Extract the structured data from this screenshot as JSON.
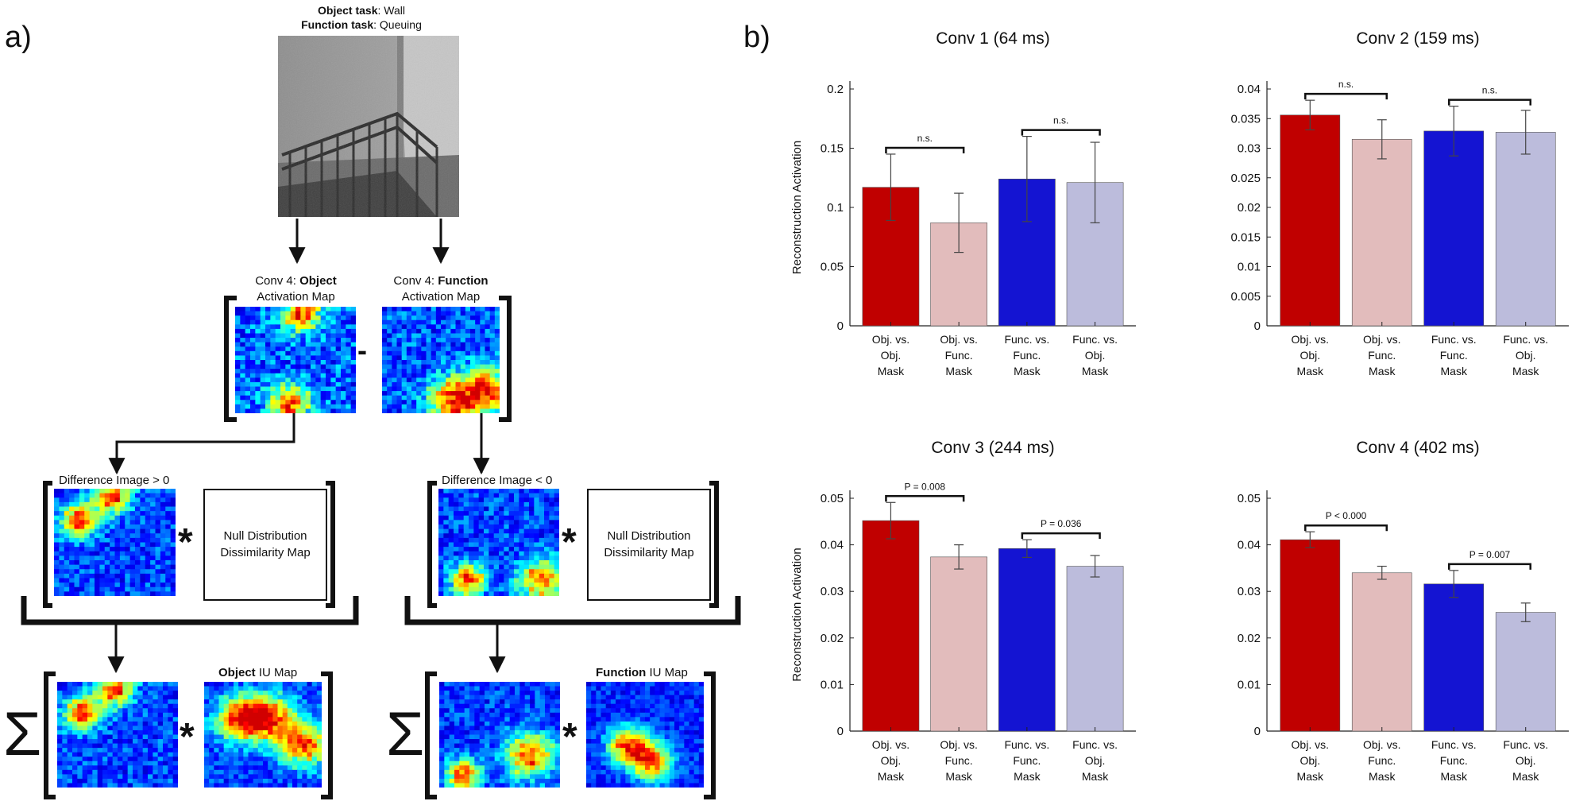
{
  "panel_a": {
    "label": "a)",
    "task_object_key": "Object task",
    "task_object_value": ": Wall",
    "task_function_key": "Function task",
    "task_function_value": ": Queuing",
    "obj_map_prefix": "Conv 4: ",
    "obj_map_bold": "Object",
    "obj_map_line2": "Activation Map",
    "func_map_prefix": "Conv 4: ",
    "func_map_bold": "Function",
    "func_map_line2": "Activation Map",
    "minus": "-",
    "diff_pos": "Difference Image > 0",
    "diff_neg": "Difference Image < 0",
    "null_line1": "Null Distribution",
    "null_line2": "Dissimilarity Map",
    "star": "*",
    "sigma": "Σ",
    "obj_iu_bold": "Object",
    "obj_iu_rest": " IU Map",
    "func_iu_bold": "Function",
    "func_iu_rest": " IU Map"
  },
  "panel_b": {
    "label": "b)"
  },
  "colors": {
    "obj_obj": "#c00000",
    "obj_func": "#e2bcbc",
    "func_func": "#1414d2",
    "func_obj": "#bcbcdc"
  },
  "chart_data": [
    {
      "type": "bar",
      "title": "Conv 1 (64 ms)",
      "ylabel": "Reconstruction Activation",
      "categories": [
        [
          "Obj. vs.",
          "Obj.",
          "Mask"
        ],
        [
          "Obj. vs.",
          "Func.",
          "Mask"
        ],
        [
          "Func. vs.",
          "Func.",
          "Mask"
        ],
        [
          "Func. vs.",
          "Obj.",
          "Mask"
        ]
      ],
      "values": [
        0.117,
        0.087,
        0.124,
        0.121
      ],
      "errors": [
        0.028,
        0.025,
        0.036,
        0.034
      ],
      "ylim": [
        0,
        0.2
      ],
      "yticks": [
        "0",
        "0.05",
        "0.1",
        "0.15",
        "0.2"
      ],
      "ytick_values": [
        0,
        0.05,
        0.1,
        0.15,
        0.2
      ],
      "annotations": [
        {
          "from": 0,
          "to": 1,
          "text": "n.s."
        },
        {
          "from": 2,
          "to": 3,
          "text": "n.s."
        }
      ]
    },
    {
      "type": "bar",
      "title": "Conv 2 (159 ms)",
      "ylabel": "",
      "categories": [
        [
          "Obj. vs.",
          "Obj.",
          "Mask"
        ],
        [
          "Obj. vs.",
          "Func.",
          "Mask"
        ],
        [
          "Func. vs.",
          "Func.",
          "Mask"
        ],
        [
          "Func. vs.",
          "Obj.",
          "Mask"
        ]
      ],
      "values": [
        0.0356,
        0.0315,
        0.0329,
        0.0327
      ],
      "errors": [
        0.0025,
        0.0033,
        0.0042,
        0.0037
      ],
      "ylim": [
        0,
        0.04
      ],
      "yticks": [
        "0",
        "0.005",
        "0.01",
        "0.015",
        "0.02",
        "0.025",
        "0.03",
        "0.035",
        "0.04"
      ],
      "ytick_values": [
        0,
        0.005,
        0.01,
        0.015,
        0.02,
        0.025,
        0.03,
        0.035,
        0.04
      ],
      "annotations": [
        {
          "from": 0,
          "to": 1,
          "text": "n.s."
        },
        {
          "from": 2,
          "to": 3,
          "text": "n.s."
        }
      ]
    },
    {
      "type": "bar",
      "title": "Conv 3 (244 ms)",
      "ylabel": "Reconstruction Activation",
      "categories": [
        [
          "Obj. vs.",
          "Obj.",
          "Mask"
        ],
        [
          "Obj. vs.",
          "Func.",
          "Mask"
        ],
        [
          "Func. vs.",
          "Func.",
          "Mask"
        ],
        [
          "Func. vs.",
          "Obj.",
          "Mask"
        ]
      ],
      "values": [
        0.0452,
        0.0374,
        0.0392,
        0.0354
      ],
      "errors": [
        0.0039,
        0.0026,
        0.0019,
        0.0023
      ],
      "ylim": [
        0,
        0.05
      ],
      "yticks": [
        "0",
        "0.01",
        "0.02",
        "0.03",
        "0.04",
        "0.05"
      ],
      "ytick_values": [
        0,
        0.01,
        0.02,
        0.03,
        0.04,
        0.05
      ],
      "annotations": [
        {
          "from": 0,
          "to": 1,
          "text": "P = 0.008"
        },
        {
          "from": 2,
          "to": 3,
          "text": "P = 0.036"
        }
      ]
    },
    {
      "type": "bar",
      "title": "Conv 4 (402 ms)",
      "ylabel": "",
      "categories": [
        [
          "Obj. vs.",
          "Obj.",
          "Mask"
        ],
        [
          "Obj. vs.",
          "Func.",
          "Mask"
        ],
        [
          "Func. vs.",
          "Func.",
          "Mask"
        ],
        [
          "Func. vs.",
          "Obj.",
          "Mask"
        ]
      ],
      "values": [
        0.0411,
        0.034,
        0.0316,
        0.0255
      ],
      "errors": [
        0.0017,
        0.0014,
        0.0029,
        0.002
      ],
      "ylim": [
        0,
        0.05
      ],
      "yticks": [
        "0",
        "0.01",
        "0.02",
        "0.03",
        "0.04",
        "0.05"
      ],
      "ytick_values": [
        0,
        0.01,
        0.02,
        0.03,
        0.04,
        0.05
      ],
      "annotations": [
        {
          "from": 0,
          "to": 1,
          "text": "P < 0.000"
        },
        {
          "from": 2,
          "to": 3,
          "text": "P = 0.007"
        }
      ]
    }
  ]
}
